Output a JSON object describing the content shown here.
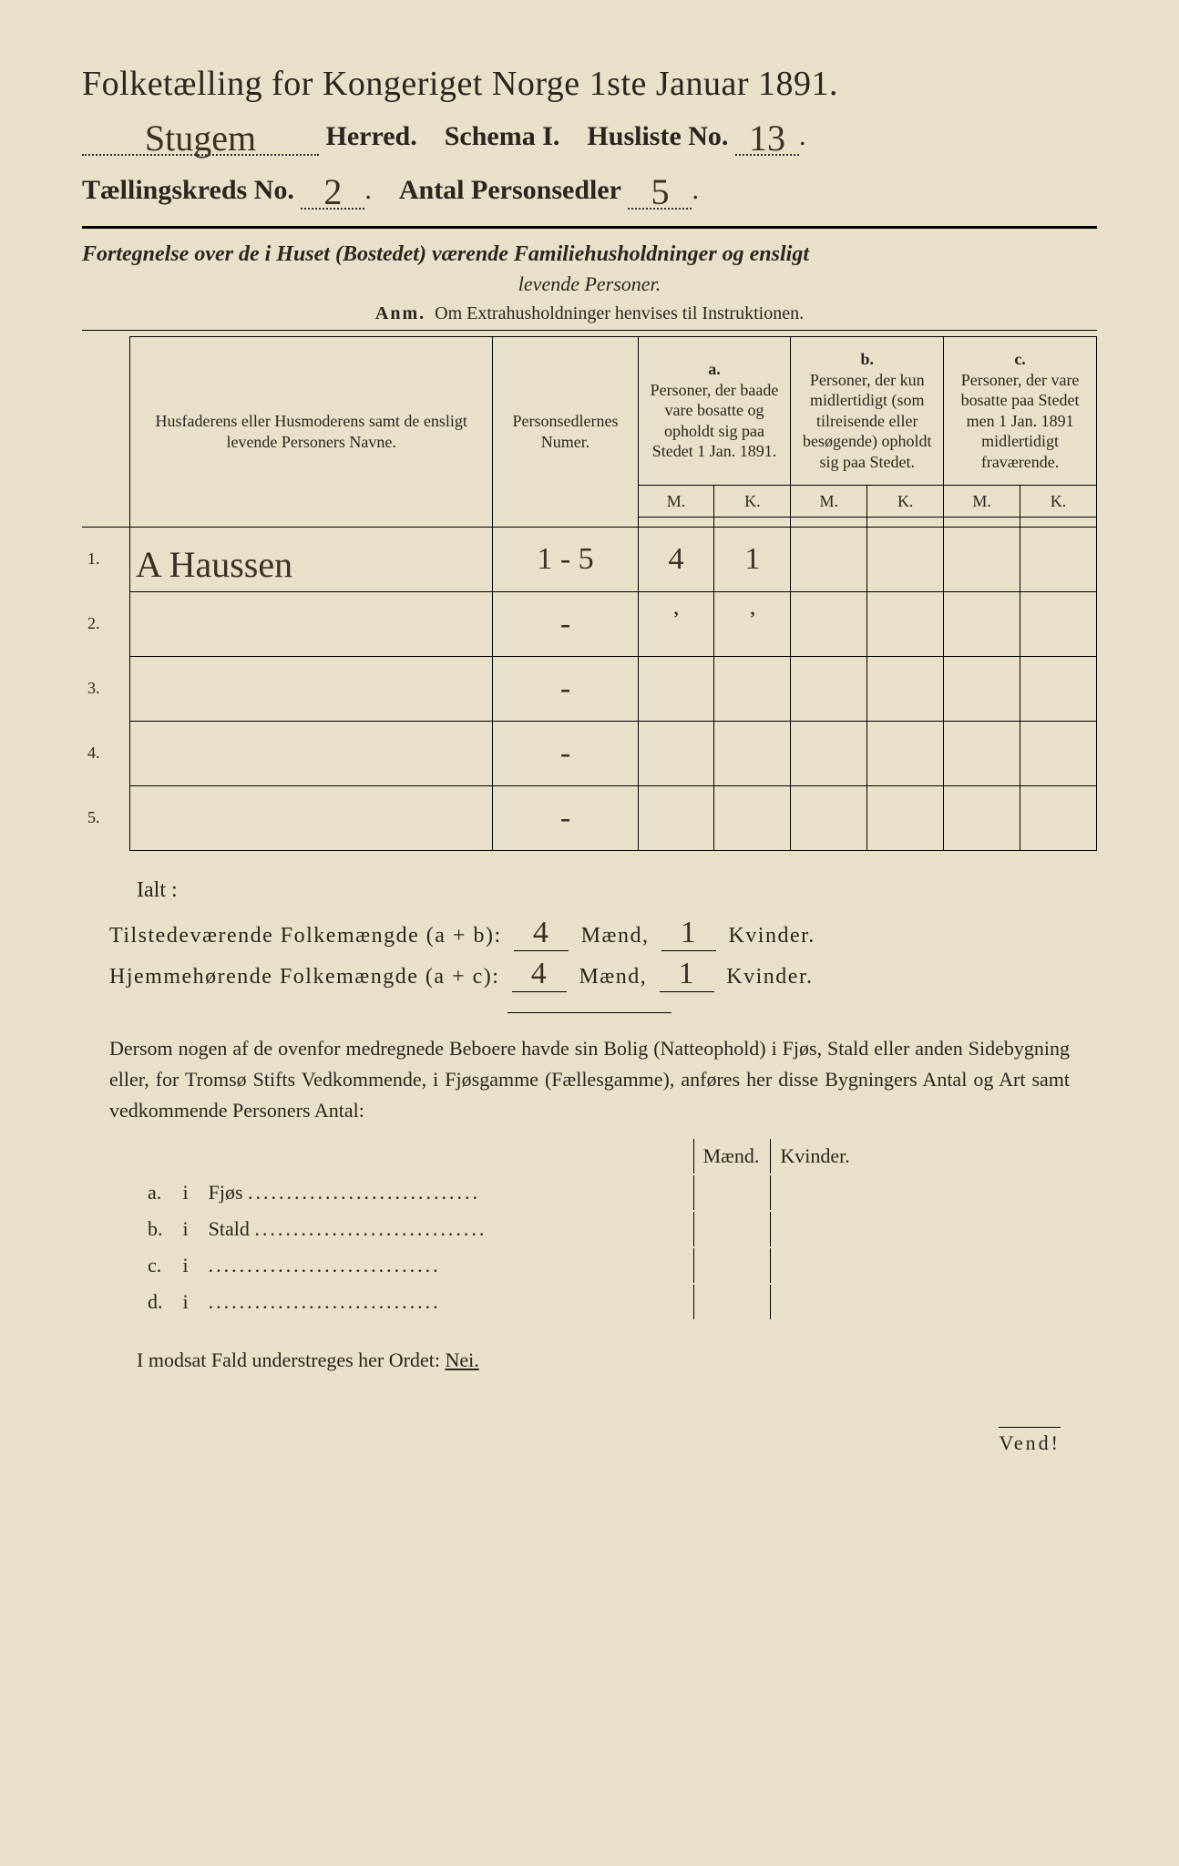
{
  "title": "Folketælling for Kongeriget Norge 1ste Januar 1891.",
  "herred_value": "Stugem",
  "herred_label": "Herred.",
  "schema_label": "Schema I.",
  "husliste_label": "Husliste No.",
  "husliste_value": "13",
  "kreds_label": "Tællingskreds No.",
  "kreds_value": "2",
  "antal_label": "Antal Personsedler",
  "antal_value": "5",
  "section_title_1": "Fortegnelse over de i Huset (Bostedet) værende Familiehusholdninger og ensligt",
  "section_title_2": "levende Personer.",
  "anm_label": "Anm.",
  "anm_text": "Om Extrahusholdninger henvises til Instruktionen.",
  "col1": "Husfaderens eller Husmoderens samt de ensligt levende Personers Navne.",
  "col2": "Personsedlernes Numer.",
  "col_a_head": "a.",
  "col_a": "Personer, der baade vare bosatte og opholdt sig paa Stedet 1 Jan. 1891.",
  "col_b_head": "b.",
  "col_b": "Personer, der kun midlertidigt (som tilreisende eller besøgende) opholdt sig paa Stedet.",
  "col_c_head": "c.",
  "col_c": "Personer, der vare bosatte paa Stedet men 1 Jan. 1891 midlertidigt fraværende.",
  "mk_m": "M.",
  "mk_k": "K.",
  "rows": [
    {
      "n": "1.",
      "name": "A Haussen",
      "numer": "1 - 5",
      "am": "4",
      "ak": "1",
      "bm": "",
      "bk": "",
      "cm": "",
      "ck": ""
    },
    {
      "n": "2.",
      "name": "",
      "numer": "-",
      "am": "᾽",
      "ak": "᾽",
      "bm": "",
      "bk": "",
      "cm": "",
      "ck": ""
    },
    {
      "n": "3.",
      "name": "",
      "numer": "-",
      "am": "",
      "ak": "",
      "bm": "",
      "bk": "",
      "cm": "",
      "ck": ""
    },
    {
      "n": "4.",
      "name": "",
      "numer": "-",
      "am": "",
      "ak": "",
      "bm": "",
      "bk": "",
      "cm": "",
      "ck": ""
    },
    {
      "n": "5.",
      "name": "",
      "numer": "-",
      "am": "",
      "ak": "",
      "bm": "",
      "bk": "",
      "cm": "",
      "ck": ""
    }
  ],
  "ialt": "Ialt :",
  "sum1_label": "Tilstedeværende Folkemængde (a + b):",
  "sum1_m": "4",
  "sum1_k": "1",
  "sum2_label": "Hjemmehørende Folkemængde (a + c):",
  "sum2_m": "4",
  "sum2_k": "1",
  "maend": "Mænd,",
  "kvinder": "Kvinder.",
  "para": "Dersom nogen af de ovenfor medregnede Beboere havde sin Bolig (Natteophold) i Fjøs, Stald eller anden Sidebygning eller, for Tromsø Stifts Vedkommende, i Fjøsgamme (Fællesgamme), anføres her disse Bygningers Antal og Art samt vedkommende Personers Antal:",
  "maend_h": "Mænd.",
  "kvinder_h": "Kvinder.",
  "side_rows": [
    {
      "k": "a.",
      "i": "i",
      "label": "Fjøs"
    },
    {
      "k": "b.",
      "i": "i",
      "label": "Stald"
    },
    {
      "k": "c.",
      "i": "i",
      "label": ""
    },
    {
      "k": "d.",
      "i": "i",
      "label": ""
    }
  ],
  "bottom": "I modsat Fald understreges her Ordet:",
  "nei": "Nei.",
  "vend": "Vend!",
  "colors": {
    "paper": "#e8e0c8",
    "ink": "#2a2520",
    "hand": "#3a3026",
    "frame": "#1a1a1a"
  }
}
